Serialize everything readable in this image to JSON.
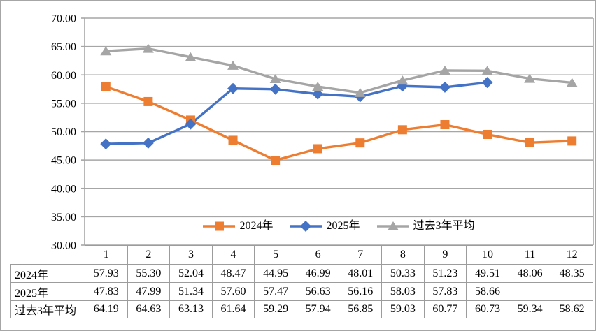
{
  "panel": {
    "background": "#FFFFFF",
    "outer_border_color": "#A6A6A6"
  },
  "colors": {
    "gridline": "#A6A6A6",
    "axis": "#A6A6A6",
    "table_border": "#9C9C9C",
    "text": "#000000",
    "series_2024": "#ED7D31",
    "series_2025": "#4472C4",
    "series_avg": "#A5A5A5"
  },
  "y_axis": {
    "min": 30,
    "max": 70,
    "step": 5,
    "tick_labels": [
      "70.00",
      "65.00",
      "60.00",
      "55.00",
      "50.00",
      "45.00",
      "40.00",
      "35.00",
      "30.00"
    ]
  },
  "legend": {
    "items": [
      {
        "label": "2024年",
        "color": "#ED7D31",
        "marker": "square"
      },
      {
        "label": "2025年",
        "color": "#4472C4",
        "marker": "diamond"
      },
      {
        "label": "过去3年平均",
        "color": "#A5A5A5",
        "marker": "triangle"
      }
    ]
  },
  "chart_data": {
    "type": "line",
    "title": "",
    "xlabel": "",
    "ylabel": "",
    "categories": [
      "1",
      "2",
      "3",
      "4",
      "5",
      "6",
      "7",
      "8",
      "9",
      "10",
      "11",
      "12"
    ],
    "series": [
      {
        "name": "2024年",
        "color": "#ED7D31",
        "marker": "square",
        "values": [
          57.93,
          55.3,
          52.04,
          48.47,
          44.95,
          46.99,
          48.01,
          50.33,
          51.23,
          49.51,
          48.06,
          48.35
        ]
      },
      {
        "name": "2025年",
        "color": "#4472C4",
        "marker": "diamond",
        "values": [
          47.83,
          47.99,
          51.34,
          57.6,
          57.47,
          56.63,
          56.16,
          58.03,
          57.83,
          58.66,
          null,
          null
        ]
      },
      {
        "name": "过去3年平均",
        "color": "#A5A5A5",
        "marker": "triangle",
        "values": [
          64.19,
          64.63,
          63.13,
          61.64,
          59.29,
          57.94,
          56.85,
          59.03,
          60.77,
          60.73,
          59.34,
          58.62
        ]
      }
    ],
    "ylim": [
      30,
      70
    ],
    "ytick_step": 5,
    "grid": true,
    "legend_position": "bottom-inside",
    "data_table_shown": true
  },
  "table": {
    "corner_label": "",
    "column_headers": [
      "1",
      "2",
      "3",
      "4",
      "5",
      "6",
      "7",
      "8",
      "9",
      "10",
      "11",
      "12"
    ],
    "rows": [
      {
        "label": "2024年",
        "cells": [
          "57.93",
          "55.30",
          "52.04",
          "48.47",
          "44.95",
          "46.99",
          "48.01",
          "50.33",
          "51.23",
          "49.51",
          "48.06",
          "48.35"
        ]
      },
      {
        "label": "2025年",
        "cells": [
          "47.83",
          "47.99",
          "51.34",
          "57.60",
          "57.47",
          "56.63",
          "56.16",
          "58.03",
          "57.83",
          "58.66",
          "",
          ""
        ]
      },
      {
        "label": "过去3年平均",
        "cells": [
          "64.19",
          "64.63",
          "63.13",
          "61.64",
          "59.29",
          "57.94",
          "56.85",
          "59.03",
          "60.77",
          "60.73",
          "59.34",
          "58.62"
        ]
      }
    ]
  }
}
